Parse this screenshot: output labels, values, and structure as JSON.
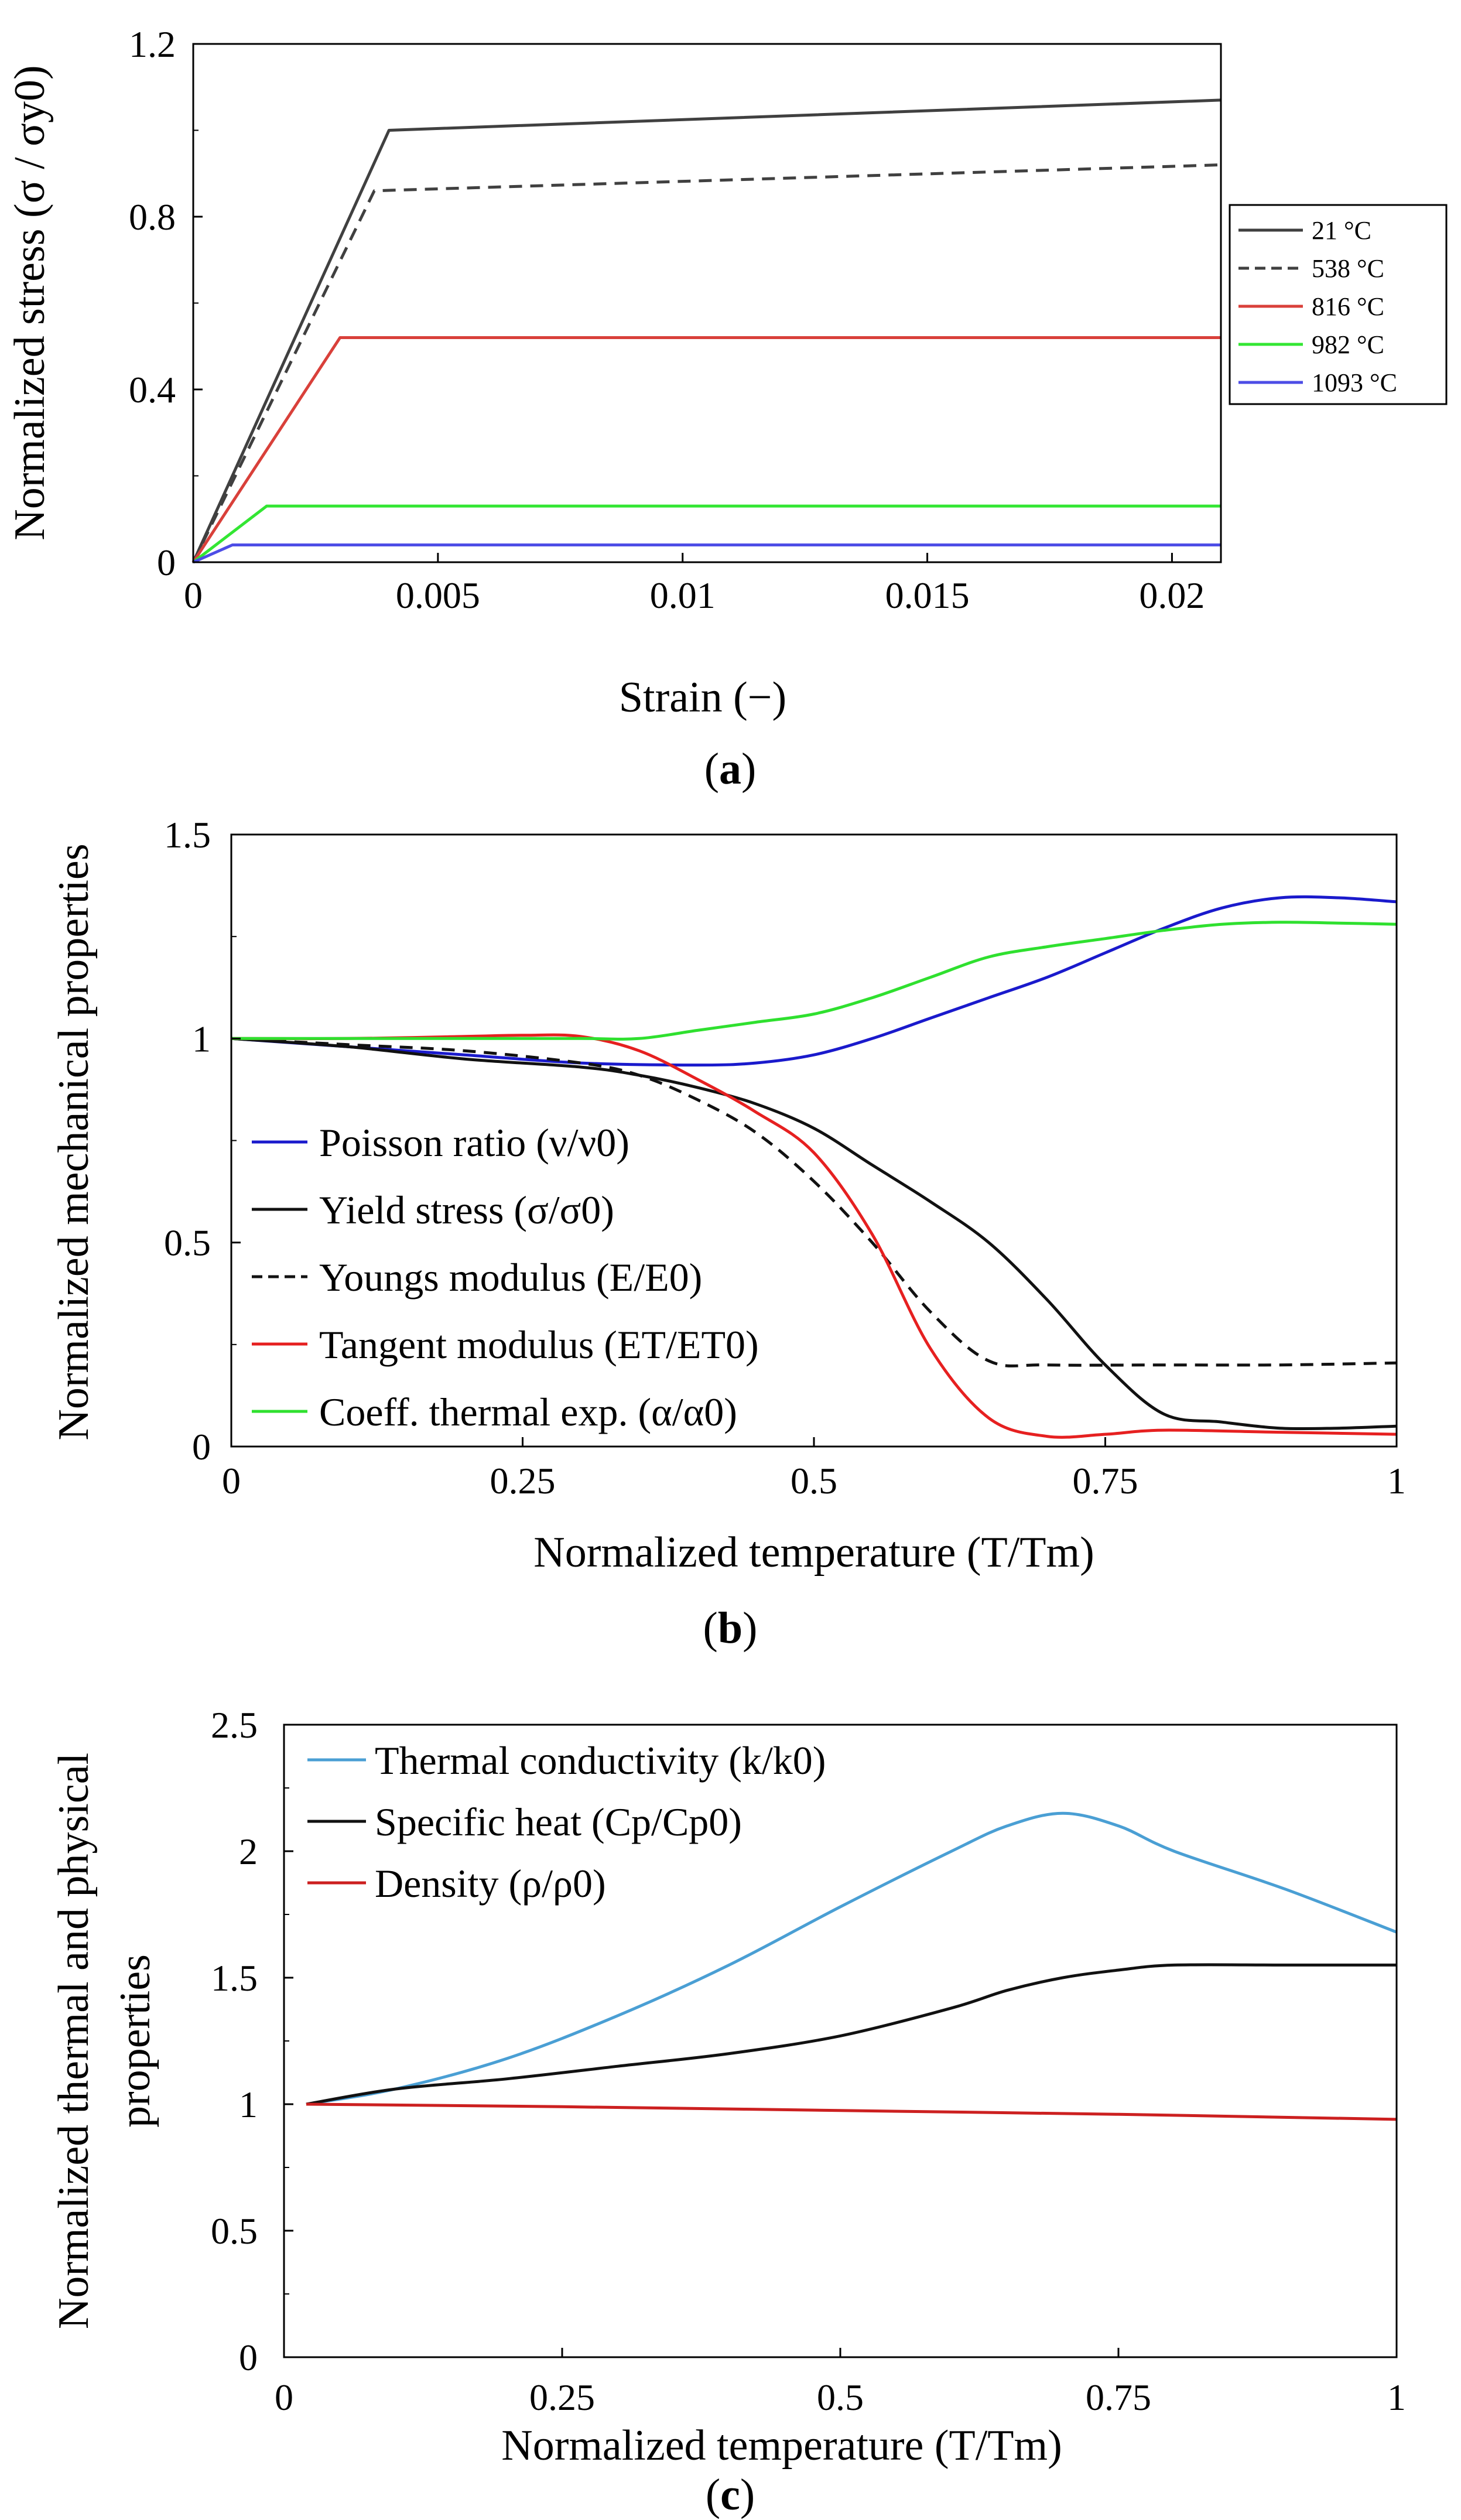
{
  "chart_data": [
    {
      "type": "line",
      "panel": "a",
      "panel_label": "a",
      "xlabel": "Strain (−)",
      "ylabel": "Normalized  stress (σ / σy0)",
      "xlim": [
        0,
        0.021
      ],
      "ylim": [
        0,
        1.2
      ],
      "xticks": [
        0,
        0.005,
        0.01,
        0.015,
        0.02
      ],
      "xtick_labels": [
        "0",
        "0.005",
        "0.01",
        "0.015",
        "0.02"
      ],
      "yticks": [
        0,
        0.4,
        0.8,
        1.2
      ],
      "ytick_labels": [
        "0",
        "0.4",
        "0.8",
        "1.2"
      ],
      "legend_position": "right",
      "series": [
        {
          "name": "21 °C",
          "color": "#404040",
          "dash": "solid",
          "x": [
            0,
            0.004,
            0.021
          ],
          "y": [
            0,
            1.0,
            1.07
          ]
        },
        {
          "name": "538 °C",
          "color": "#404040",
          "dash": "dashed",
          "x": [
            0,
            0.0037,
            0.021
          ],
          "y": [
            0,
            0.86,
            0.92
          ]
        },
        {
          "name": "816 °C",
          "color": "#d9403a",
          "dash": "solid",
          "x": [
            0,
            0.003,
            0.021
          ],
          "y": [
            0,
            0.52,
            0.52
          ]
        },
        {
          "name": "982 °C",
          "color": "#33e633",
          "dash": "solid",
          "x": [
            0,
            0.0015,
            0.021
          ],
          "y": [
            0,
            0.13,
            0.13
          ]
        },
        {
          "name": "1093 °C",
          "color": "#4d4de6",
          "dash": "solid",
          "x": [
            0,
            0.0008,
            0.021
          ],
          "y": [
            0,
            0.04,
            0.04
          ]
        }
      ]
    },
    {
      "type": "line",
      "panel": "b",
      "panel_label": "b",
      "xlabel": "Normalized temperature (T/Tm)",
      "ylabel": "Normalized mechanical properties",
      "xlim": [
        0,
        1
      ],
      "ylim": [
        0,
        1.5
      ],
      "xticks": [
        0,
        0.25,
        0.5,
        0.75,
        1
      ],
      "xtick_labels": [
        "0",
        "0.25",
        "0.5",
        "0.75",
        "1"
      ],
      "yticks": [
        0,
        0.5,
        1,
        1.5
      ],
      "ytick_labels": [
        "0",
        "0.5",
        "1",
        "1.5"
      ],
      "legend_position": "lower-left",
      "series": [
        {
          "name": "Poisson ratio (ν/ν0)",
          "color": "#1a1acc",
          "dash": "solid",
          "x": [
            0,
            0.1,
            0.2,
            0.3,
            0.4,
            0.45,
            0.5,
            0.55,
            0.6,
            0.65,
            0.7,
            0.75,
            0.8,
            0.85,
            0.9,
            0.95,
            1.0
          ],
          "y": [
            1.0,
            0.98,
            0.96,
            0.94,
            0.935,
            0.94,
            0.96,
            1.0,
            1.05,
            1.1,
            1.15,
            1.21,
            1.27,
            1.32,
            1.345,
            1.345,
            1.335
          ]
        },
        {
          "name": "Yield stress (σ/σ0)",
          "color": "#111111",
          "dash": "solid",
          "x": [
            0,
            0.1,
            0.2,
            0.3,
            0.35,
            0.4,
            0.45,
            0.5,
            0.55,
            0.6,
            0.65,
            0.7,
            0.75,
            0.8,
            0.85,
            0.9,
            0.95,
            1.0
          ],
          "y": [
            1.0,
            0.98,
            0.95,
            0.93,
            0.91,
            0.88,
            0.84,
            0.78,
            0.69,
            0.6,
            0.5,
            0.36,
            0.2,
            0.08,
            0.06,
            0.045,
            0.045,
            0.05
          ]
        },
        {
          "name": "Youngs modulus (E/E0)",
          "color": "#111111",
          "dash": "dashed",
          "x": [
            0,
            0.1,
            0.2,
            0.3,
            0.35,
            0.4,
            0.45,
            0.5,
            0.55,
            0.6,
            0.65,
            0.7,
            0.8,
            0.9,
            1.0
          ],
          "y": [
            1.0,
            0.985,
            0.97,
            0.94,
            0.91,
            0.85,
            0.77,
            0.65,
            0.5,
            0.33,
            0.21,
            0.2,
            0.2,
            0.2,
            0.205
          ]
        },
        {
          "name": "Tangent modulus (ET/ET0)",
          "color": "#e62020",
          "dash": "solid",
          "x": [
            0,
            0.1,
            0.2,
            0.25,
            0.3,
            0.35,
            0.4,
            0.45,
            0.5,
            0.55,
            0.6,
            0.65,
            0.7,
            0.75,
            0.8,
            0.9,
            1.0
          ],
          "y": [
            1.0,
            1.0,
            1.005,
            1.008,
            1.005,
            0.97,
            0.9,
            0.82,
            0.72,
            0.52,
            0.24,
            0.07,
            0.025,
            0.03,
            0.04,
            0.035,
            0.03
          ]
        },
        {
          "name": "Coeff. thermal exp. (α/α0)",
          "color": "#2fe02f",
          "dash": "solid",
          "x": [
            0,
            0.1,
            0.2,
            0.3,
            0.35,
            0.4,
            0.45,
            0.5,
            0.55,
            0.6,
            0.65,
            0.7,
            0.75,
            0.8,
            0.85,
            0.9,
            0.95,
            1.0
          ],
          "y": [
            1.0,
            1.0,
            1.0,
            1.0,
            1.0,
            1.02,
            1.04,
            1.06,
            1.1,
            1.15,
            1.2,
            1.225,
            1.245,
            1.265,
            1.28,
            1.285,
            1.283,
            1.28
          ]
        }
      ]
    },
    {
      "type": "line",
      "panel": "c",
      "panel_label": "c",
      "xlabel": "Normalized temperature (T/Tm)",
      "ylabel_line1": "Normalized thermal and physical",
      "ylabel_line2": "properties",
      "xlim": [
        0,
        1
      ],
      "ylim": [
        0,
        2.5
      ],
      "xticks": [
        0,
        0.25,
        0.5,
        0.75,
        1
      ],
      "xtick_labels": [
        "0",
        "0.25",
        "0.5",
        "0.75",
        "1"
      ],
      "yticks": [
        0,
        0.5,
        1,
        1.5,
        2,
        2.5
      ],
      "ytick_labels": [
        "0",
        "0.5",
        "1",
        "1.5",
        "2",
        "2.5"
      ],
      "legend_position": "top-left",
      "series": [
        {
          "name": "Thermal conductivity (k/k0)",
          "color": "#4a9fd4",
          "dash": "solid",
          "x": [
            0.02,
            0.1,
            0.2,
            0.3,
            0.4,
            0.5,
            0.6,
            0.65,
            0.7,
            0.75,
            0.8,
            0.9,
            1.0
          ],
          "y": [
            1.0,
            1.06,
            1.18,
            1.35,
            1.55,
            1.78,
            2.0,
            2.1,
            2.15,
            2.1,
            2.0,
            1.85,
            1.68
          ]
        },
        {
          "name": "Specific heat (Cp/Cp0)",
          "color": "#111111",
          "dash": "solid",
          "x": [
            0.02,
            0.1,
            0.2,
            0.3,
            0.4,
            0.5,
            0.6,
            0.65,
            0.7,
            0.75,
            0.8,
            0.9,
            1.0
          ],
          "y": [
            1.0,
            1.06,
            1.1,
            1.15,
            1.2,
            1.27,
            1.38,
            1.45,
            1.5,
            1.53,
            1.55,
            1.55,
            1.55
          ]
        },
        {
          "name": "Density (ρ/ρ0)",
          "color": "#cc2020",
          "dash": "solid",
          "x": [
            0.02,
            0.25,
            0.5,
            0.75,
            1.0
          ],
          "y": [
            1.0,
            0.99,
            0.975,
            0.96,
            0.94
          ]
        }
      ]
    }
  ]
}
